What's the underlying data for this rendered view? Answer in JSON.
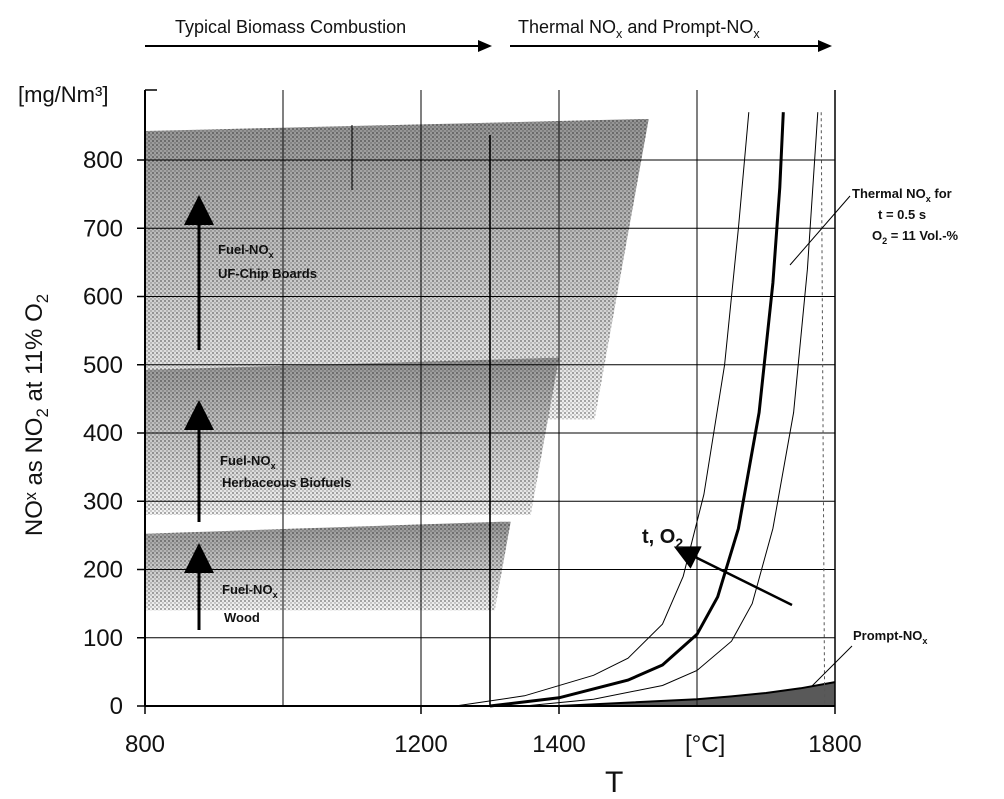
{
  "chart_data": {
    "type": "line",
    "x_unit_label": "[°C]",
    "xlabel": "T",
    "y_unit_label": "[mg/Nm³]",
    "ylabel": "NOˣ as NO2 at 11% O2",
    "xlim": [
      800,
      1800
    ],
    "ylim": [
      0,
      880
    ],
    "x_ticks": [
      800,
      1200,
      1400,
      1800
    ],
    "y_ticks": [
      0,
      100,
      200,
      300,
      400,
      500,
      600,
      700,
      800
    ],
    "header_left": "Typical Biomass Combustion",
    "header_right": "Thermal NOx and Prompt-NOx",
    "bands": [
      {
        "name": "Fuel-NOx UF-Chip Boards",
        "label_line1": "Fuel-NOx",
        "label_line2": "UF-Chip Boards",
        "y_low": 420,
        "y_high": 860,
        "x_start": 800,
        "x_end": 1530
      },
      {
        "name": "Fuel-NOx Herbaceous Biofuels",
        "label_line1": "Fuel-NOx",
        "label_line2": "Herbaceous Biofuels",
        "y_low": 280,
        "y_high": 510,
        "x_start": 800,
        "x_end": 1400
      },
      {
        "name": "Fuel-NOx Wood",
        "label_line1": "Fuel-NOx",
        "label_line2": "Wood",
        "y_low": 140,
        "y_high": 270,
        "x_start": 800,
        "x_end": 1330
      }
    ],
    "series": [
      {
        "name": "Thermal NOx for t = 0.5 s O2 = 11 Vol.-%",
        "x": [
          1300,
          1400,
          1500,
          1550,
          1600,
          1630,
          1660,
          1690,
          1710,
          1720,
          1725
        ],
        "y": [
          0,
          12,
          38,
          60,
          105,
          160,
          260,
          430,
          620,
          760,
          870
        ]
      },
      {
        "name": "",
        "x": [
          1250,
          1350,
          1450,
          1500,
          1550,
          1580,
          1610,
          1640,
          1660,
          1675
        ],
        "y": [
          0,
          15,
          45,
          70,
          120,
          190,
          310,
          500,
          700,
          870
        ]
      },
      {
        "name": "",
        "x": [
          1350,
          1450,
          1550,
          1600,
          1650,
          1680,
          1710,
          1740,
          1760,
          1775
        ],
        "y": [
          0,
          10,
          30,
          52,
          95,
          150,
          260,
          430,
          640,
          870
        ]
      },
      {
        "name": "Prompt-NOx",
        "x": [
          1400,
          1500,
          1600,
          1650,
          1700,
          1750,
          1800
        ],
        "y": [
          0,
          5,
          10,
          14,
          19,
          26,
          35
        ]
      }
    ],
    "annotations": {
      "thermal_label": [
        "Thermal NOx for",
        "t = 0.5 s",
        "O2 = 11 Vol.-%"
      ],
      "prompt_label": "Prompt-NOx",
      "trend_label": "t, O2"
    }
  }
}
